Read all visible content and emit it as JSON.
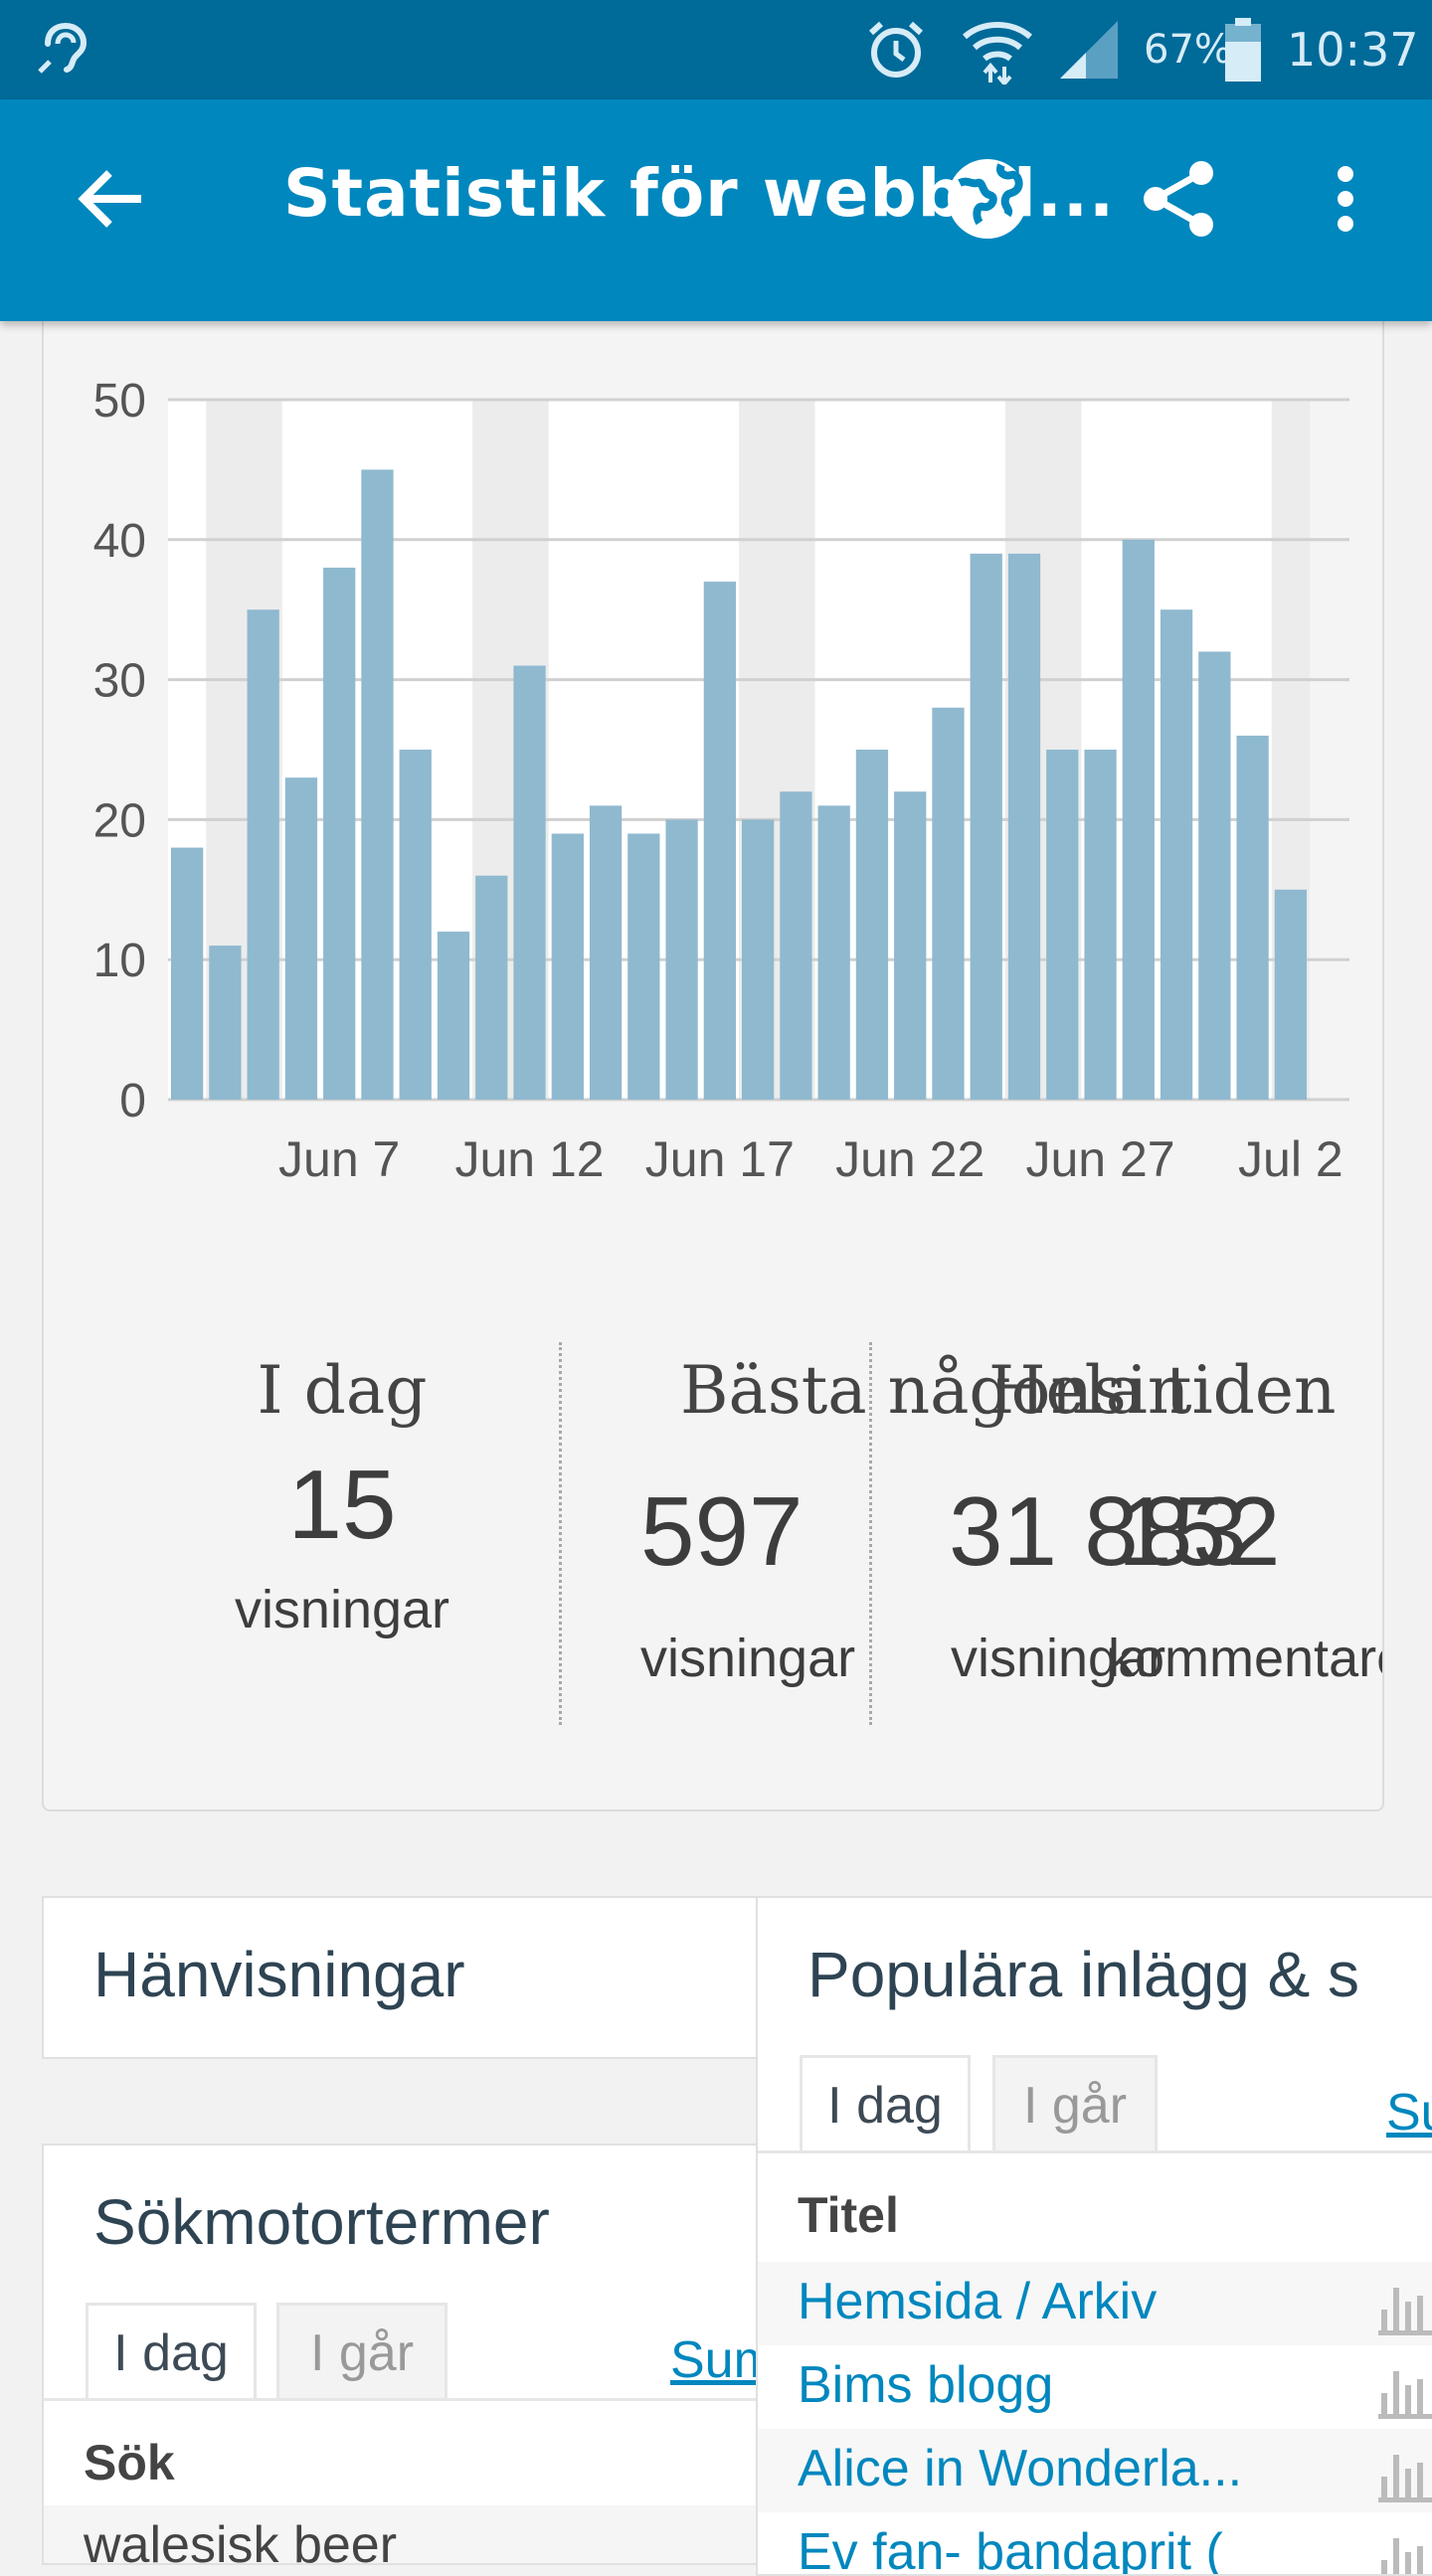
{
  "status_bar": {
    "battery": "67%",
    "time": "10:37"
  },
  "app_bar": {
    "title": "Statistik för webbpl..."
  },
  "chart_data": {
    "type": "bar",
    "categories": [
      "Jun 3",
      "Jun 4",
      "Jun 5",
      "Jun 6",
      "Jun 7",
      "Jun 8",
      "Jun 9",
      "Jun 10",
      "Jun 11",
      "Jun 12",
      "Jun 13",
      "Jun 14",
      "Jun 15",
      "Jun 16",
      "Jun 17",
      "Jun 18",
      "Jun 19",
      "Jun 20",
      "Jun 21",
      "Jun 22",
      "Jun 23",
      "Jun 24",
      "Jun 25",
      "Jun 26",
      "Jun 27",
      "Jun 28",
      "Jun 29",
      "Jun 30",
      "Jul 1",
      "Jul 2"
    ],
    "values": [
      18,
      11,
      35,
      23,
      38,
      45,
      25,
      12,
      16,
      31,
      19,
      21,
      19,
      20,
      37,
      20,
      22,
      21,
      25,
      22,
      28,
      39,
      39,
      25,
      25,
      40,
      35,
      32,
      26,
      15
    ],
    "ylim": [
      0,
      50
    ],
    "yticks": [
      "0",
      "10",
      "20",
      "30",
      "40",
      "50"
    ],
    "xtick_labels": [
      "Jun 7",
      "Jun 12",
      "Jun 17",
      "Jun 22",
      "Jun 27",
      "Jul 2"
    ],
    "colors": {
      "bar": "#8fb9cf",
      "weekend_band": "#ececec",
      "grid": "#d0d0d0"
    }
  },
  "stats": {
    "today": {
      "heading": "I dag",
      "value": "15",
      "label": "visningar"
    },
    "best": {
      "heading": "Bästa någonsin",
      "value": "597",
      "label": "visningar"
    },
    "all_time": {
      "heading": "Hela tiden",
      "value": "31 883",
      "label": "visningar"
    },
    "comments": {
      "value": "152",
      "label": "kommentarer"
    }
  },
  "referrers": {
    "title": "Hänvisningar"
  },
  "search_terms": {
    "title": "Sökmotortermer",
    "tab_today": "I dag",
    "tab_yesterday": "I går",
    "summary_link": "Sum",
    "column": "Sök",
    "first_row": "walesisk beer"
  },
  "popular": {
    "title": "Populära inlägg & s",
    "tab_today": "I dag",
    "tab_yesterday": "I går",
    "summary_link": "Su",
    "column": "Titel",
    "rows": [
      "Hemsida / Arkiv",
      "Bims blogg",
      "Alice in Wonderla...",
      "Ev fan- bandaprit ("
    ]
  }
}
